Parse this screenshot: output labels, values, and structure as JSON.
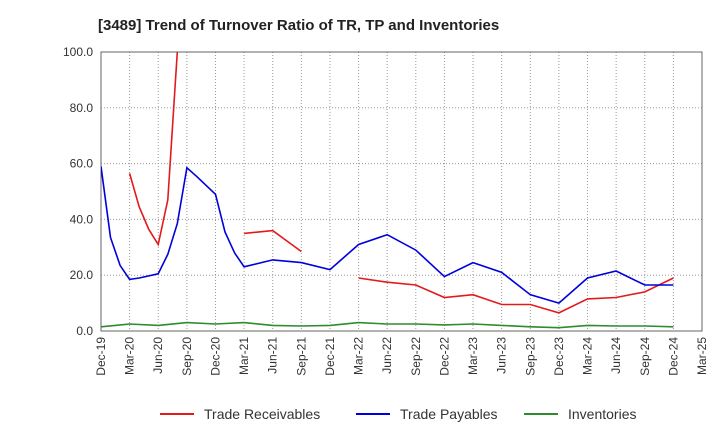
{
  "chart_data": {
    "type": "line",
    "title": "[3489]  Trend of Turnover Ratio of TR, TP and Inventories",
    "xlabel": "",
    "ylabel": "",
    "ylim": [
      0,
      100
    ],
    "yticks": [
      "0.0",
      "20.0",
      "40.0",
      "60.0",
      "80.0",
      "100.0"
    ],
    "yticks_values": [
      0,
      20,
      40,
      60,
      80,
      100
    ],
    "grid": true,
    "legend_position": "bottom",
    "x": [
      "2019-12",
      "2020-01",
      "2020-02",
      "2020-03",
      "2020-04",
      "2020-05",
      "2020-06",
      "2020-07",
      "2020-08",
      "2020-09",
      "2020-10",
      "2020-11",
      "2020-12",
      "2021-01",
      "2021-02",
      "2021-03",
      "2021-04",
      "2021-05",
      "2021-06",
      "2021-07",
      "2021-08",
      "2021-09",
      "2021-10",
      "2021-11",
      "2021-12",
      "2022-01",
      "2022-02",
      "2022-03",
      "2022-04",
      "2022-05",
      "2022-06",
      "2022-07",
      "2022-08",
      "2022-09",
      "2022-10",
      "2022-11",
      "2022-12",
      "2023-01",
      "2023-02",
      "2023-03",
      "2023-04",
      "2023-05",
      "2023-06",
      "2023-07",
      "2023-08",
      "2023-09",
      "2023-10",
      "2023-11",
      "2023-12",
      "2024-01",
      "2024-02",
      "2024-03",
      "2024-04",
      "2024-05",
      "2024-06",
      "2024-07",
      "2024-08",
      "2024-09",
      "2024-10",
      "2024-11",
      "2024-12",
      "2025-01",
      "2025-02",
      "2025-03"
    ],
    "xtick_labels": [
      "Dec-19",
      "Mar-20",
      "Jun-20",
      "Sep-20",
      "Dec-20",
      "Mar-21",
      "Jun-21",
      "Sep-21",
      "Dec-21",
      "Mar-22",
      "Jun-22",
      "Sep-22",
      "Dec-22",
      "Mar-23",
      "Jun-23",
      "Sep-23",
      "Dec-23",
      "Mar-24",
      "Jun-24",
      "Sep-24",
      "Dec-24",
      "Mar-25"
    ],
    "series": [
      {
        "name": "Trade Receivables",
        "color": "#e31a1c",
        "values": [
          null,
          null,
          null,
          56.5,
          44.5,
          36.5,
          31.0,
          47.0,
          100.0,
          null,
          null,
          null,
          null,
          null,
          null,
          35.0,
          null,
          null,
          36.0,
          null,
          null,
          28.5,
          null,
          null,
          null,
          null,
          null,
          19.0,
          null,
          null,
          17.5,
          null,
          null,
          16.5,
          null,
          null,
          12.0,
          null,
          null,
          13.0,
          null,
          null,
          9.5,
          null,
          null,
          9.5,
          null,
          null,
          6.5,
          null,
          null,
          11.5,
          null,
          null,
          12.0,
          null,
          null,
          14.0,
          null,
          null,
          19.0,
          null,
          null,
          null
        ]
      },
      {
        "name": "Trade Payables",
        "color": "#0000dd",
        "values": [
          59.0,
          33.5,
          23.5,
          18.5,
          19.0,
          null,
          20.5,
          27.5,
          38.5,
          58.5,
          55.5,
          null,
          49.0,
          35.5,
          28.0,
          23.0,
          null,
          null,
          25.5,
          null,
          null,
          24.5,
          null,
          null,
          22.0,
          null,
          null,
          31.0,
          null,
          null,
          34.5,
          null,
          null,
          29.0,
          null,
          null,
          19.5,
          null,
          null,
          24.5,
          null,
          null,
          21.0,
          null,
          null,
          13.0,
          null,
          null,
          10.0,
          null,
          null,
          19.0,
          null,
          null,
          21.5,
          null,
          null,
          16.5,
          null,
          null,
          16.5,
          null,
          null,
          null
        ]
      },
      {
        "name": "Inventories",
        "color": "#2e8b2e",
        "values": [
          1.5,
          null,
          null,
          2.5,
          null,
          null,
          2.0,
          null,
          null,
          3.0,
          null,
          null,
          2.5,
          null,
          null,
          3.0,
          null,
          null,
          2.0,
          null,
          null,
          1.8,
          null,
          null,
          2.0,
          null,
          null,
          3.0,
          null,
          null,
          2.5,
          null,
          null,
          2.5,
          null,
          null,
          2.2,
          null,
          null,
          2.5,
          null,
          null,
          2.0,
          null,
          null,
          1.5,
          null,
          null,
          1.2,
          null,
          null,
          2.0,
          null,
          null,
          1.8,
          null,
          null,
          1.8,
          null,
          null,
          1.5,
          null,
          null,
          null
        ]
      }
    ]
  }
}
